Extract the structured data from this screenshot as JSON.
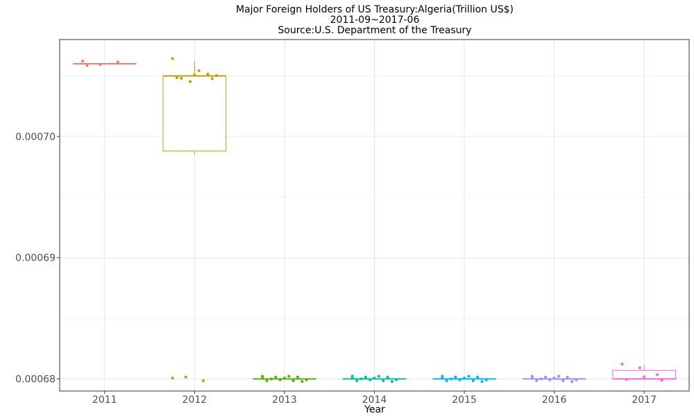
{
  "chart_data": {
    "type": "box",
    "title_lines": [
      "Major Foreign Holders of US Treasury:Algeria(Trillion US$)",
      "2011-09~2017-06",
      "Source:U.S. Department of the Treasury"
    ],
    "xlabel": "Year",
    "ylabel": "",
    "categories": [
      "2011",
      "2012",
      "2013",
      "2014",
      "2015",
      "2016",
      "2017"
    ],
    "y_ticks": [
      "0.00068",
      "0.00069",
      "0.00070"
    ],
    "y_tick_values": [
      0.00068,
      0.00069,
      0.0007
    ],
    "ylim": [
      0.000679,
      0.000708
    ],
    "grid": true,
    "legend": "none",
    "colors": [
      "#F8766D",
      "#C49A00",
      "#53B400",
      "#00C094",
      "#00B6EB",
      "#A58AFF",
      "#FB61D7"
    ],
    "series": [
      {
        "category": "2011",
        "min": 0.000706,
        "q1": 0.000706,
        "median": 0.000706,
        "q3": 0.000706,
        "max": 0.000706,
        "points": [
          0.000706,
          0.000706,
          0.000706,
          0.000706
        ]
      },
      {
        "category": "2012",
        "min": 0.0006985,
        "q1": 0.0006988,
        "median": 0.000705,
        "q3": 0.000705,
        "max": 0.0007062,
        "points": [
          0.0007062,
          0.0007046,
          0.000705,
          0.000705,
          0.000705,
          0.000705,
          0.0007048,
          0.0007052,
          0.0007051,
          0.00068,
          0.00068,
          0.00068
        ]
      },
      {
        "category": "2013",
        "min": 0.00068,
        "q1": 0.00068,
        "median": 0.00068,
        "q3": 0.00068,
        "max": 0.00068,
        "points": [
          0.00068,
          0.00068,
          0.00068,
          0.00068,
          0.00068,
          0.00068,
          0.00068,
          0.00068,
          0.00068,
          0.00068,
          0.00068,
          0.00068
        ]
      },
      {
        "category": "2014",
        "min": 0.00068,
        "q1": 0.00068,
        "median": 0.00068,
        "q3": 0.00068,
        "max": 0.00068,
        "points": [
          0.00068,
          0.00068,
          0.00068,
          0.00068,
          0.00068,
          0.00068,
          0.00068,
          0.00068,
          0.00068,
          0.00068,
          0.00068,
          0.00068
        ]
      },
      {
        "category": "2015",
        "min": 0.00068,
        "q1": 0.00068,
        "median": 0.00068,
        "q3": 0.00068,
        "max": 0.00068,
        "points": [
          0.00068,
          0.00068,
          0.00068,
          0.00068,
          0.00068,
          0.00068,
          0.00068,
          0.00068,
          0.00068,
          0.00068,
          0.00068,
          0.00068
        ]
      },
      {
        "category": "2016",
        "min": 0.00068,
        "q1": 0.00068,
        "median": 0.00068,
        "q3": 0.00068,
        "max": 0.00068,
        "points": [
          0.00068,
          0.00068,
          0.00068,
          0.00068,
          0.00068,
          0.00068,
          0.00068,
          0.00068,
          0.00068,
          0.00068,
          0.00068,
          0.00068
        ]
      },
      {
        "category": "2017",
        "min": 0.00068,
        "q1": 0.00068,
        "median": 0.00068,
        "q3": 0.0006807,
        "max": 0.0006811,
        "points": [
          0.000681,
          0.000681,
          0.0006802,
          0.0006801,
          0.0006801,
          0.0006801
        ]
      }
    ]
  }
}
